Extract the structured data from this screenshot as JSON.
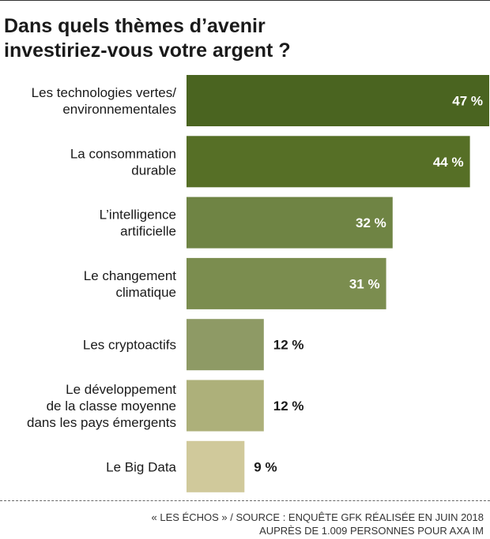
{
  "title": {
    "line1": "Dans quels thèmes d’avenir",
    "line2": "investiriez-vous votre argent ?"
  },
  "chart_data": {
    "type": "bar",
    "orientation": "horizontal",
    "title": "Dans quels thèmes d’avenir investiriez-vous votre argent ?",
    "unit": "%",
    "categories": [
      [
        "Les technologies vertes/",
        "environnementales"
      ],
      [
        "La consommation",
        "durable"
      ],
      [
        "L’intelligence",
        "artificielle"
      ],
      [
        "Le changement",
        "climatique"
      ],
      [
        "Les cryptoactifs"
      ],
      [
        "Le développement",
        "de la classe moyenne",
        "dans les pays émergents"
      ],
      [
        "Le Big Data"
      ]
    ],
    "values": [
      47,
      44,
      32,
      31,
      12,
      12,
      9
    ],
    "value_labels": [
      "47 %",
      "44 %",
      "32 %",
      "31 %",
      "12 %",
      "12 %",
      "9 %"
    ],
    "colors": [
      "#4a6420",
      "#566f26",
      "#6f8444",
      "#7b8d4f",
      "#8e9a65",
      "#adb07a",
      "#d0c99b"
    ],
    "xlim": [
      0,
      47
    ],
    "grid": false,
    "legend": "none"
  },
  "source": {
    "line1": "« LES ÉCHOS » / SOURCE : ENQUÊTE GFK RÉALISÉE EN JUIN 2018",
    "line2": "AUPRÈS DE 1.009 PERSONNES POUR AXA IM"
  }
}
